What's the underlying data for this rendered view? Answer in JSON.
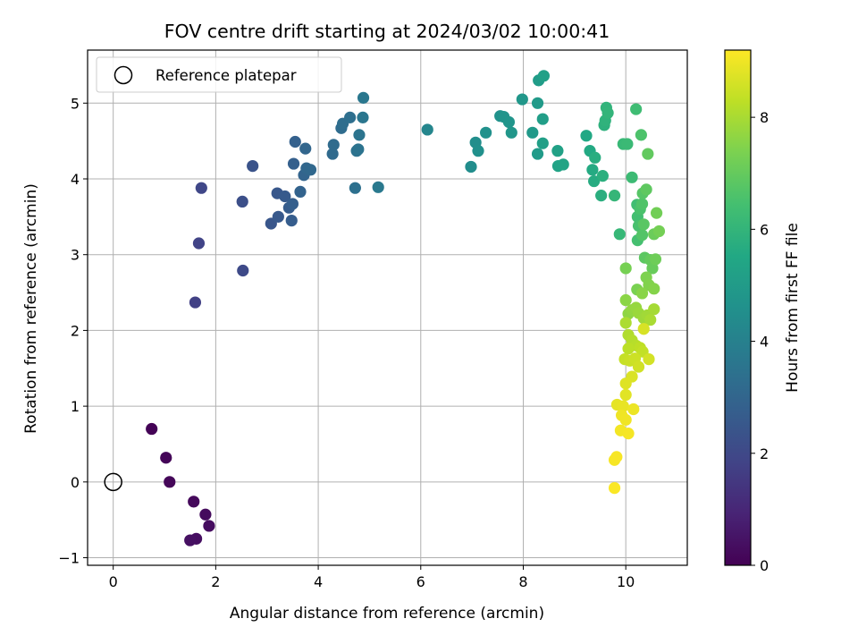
{
  "chart_data": {
    "type": "scatter",
    "title": "FOV centre drift starting at 2024/03/02 10:00:41",
    "xlabel": "Angular distance from reference (arcmin)",
    "ylabel": "Rotation from reference (arcmin)",
    "xlim": [
      -0.5,
      11.2
    ],
    "ylim": [
      -1.1,
      5.7
    ],
    "xticks": [
      0,
      2,
      4,
      6,
      8,
      10
    ],
    "yticks": [
      -1,
      0,
      1,
      2,
      3,
      4,
      5
    ],
    "grid": true,
    "legend": {
      "position": "upper-left",
      "entries": [
        {
          "label": "Reference platepar",
          "marker": "open-circle"
        }
      ]
    },
    "reference_point": {
      "x": 0,
      "y": 0
    },
    "colorbar": {
      "label": "Hours from first FF file",
      "colormap": "viridis",
      "range": [
        0,
        9.2
      ],
      "ticks": [
        0,
        2,
        4,
        6,
        8
      ]
    },
    "points": [
      [
        0.75,
        0.7,
        0.05
      ],
      [
        1.03,
        0.32,
        0.1
      ],
      [
        1.1,
        0.0,
        0.15
      ],
      [
        1.57,
        -0.26,
        0.2
      ],
      [
        1.8,
        -0.43,
        0.25
      ],
      [
        1.87,
        -0.58,
        0.3
      ],
      [
        1.62,
        -0.75,
        0.35
      ],
      [
        1.5,
        -0.77,
        0.4
      ],
      [
        1.6,
        2.37,
        1.75
      ],
      [
        1.67,
        3.15,
        1.85
      ],
      [
        1.72,
        3.88,
        1.95
      ],
      [
        2.53,
        2.79,
        2.05
      ],
      [
        2.52,
        3.7,
        2.2
      ],
      [
        2.72,
        4.17,
        2.35
      ],
      [
        3.08,
        3.41,
        2.45
      ],
      [
        3.2,
        3.81,
        2.5
      ],
      [
        3.22,
        3.5,
        2.55
      ],
      [
        3.35,
        3.77,
        2.6
      ],
      [
        3.43,
        3.62,
        2.65
      ],
      [
        3.48,
        3.45,
        2.7
      ],
      [
        3.5,
        3.67,
        2.75
      ],
      [
        3.52,
        4.2,
        2.8
      ],
      [
        3.55,
        4.49,
        2.85
      ],
      [
        3.65,
        3.83,
        2.9
      ],
      [
        3.72,
        4.05,
        2.95
      ],
      [
        3.75,
        4.4,
        3.0
      ],
      [
        3.77,
        4.14,
        3.05
      ],
      [
        3.85,
        4.12,
        3.1
      ],
      [
        4.28,
        4.33,
        3.15
      ],
      [
        4.3,
        4.45,
        3.2
      ],
      [
        4.45,
        4.67,
        3.25
      ],
      [
        4.48,
        4.73,
        3.3
      ],
      [
        4.62,
        4.81,
        3.35
      ],
      [
        4.72,
        3.88,
        3.4
      ],
      [
        4.75,
        4.37,
        3.45
      ],
      [
        4.78,
        4.39,
        3.5
      ],
      [
        4.8,
        4.58,
        3.55
      ],
      [
        4.87,
        4.81,
        3.6
      ],
      [
        4.88,
        5.07,
        3.65
      ],
      [
        5.17,
        3.89,
        3.7
      ],
      [
        6.13,
        4.65,
        4.2
      ],
      [
        6.98,
        4.16,
        4.45
      ],
      [
        7.07,
        4.48,
        4.5
      ],
      [
        7.12,
        4.37,
        4.55
      ],
      [
        7.27,
        4.61,
        4.6
      ],
      [
        7.55,
        4.83,
        4.65
      ],
      [
        7.62,
        4.82,
        4.7
      ],
      [
        7.72,
        4.75,
        4.75
      ],
      [
        7.77,
        4.61,
        4.8
      ],
      [
        7.98,
        5.05,
        4.85
      ],
      [
        8.18,
        4.61,
        4.9
      ],
      [
        8.28,
        5.0,
        4.95
      ],
      [
        8.28,
        4.33,
        5.0
      ],
      [
        8.3,
        5.3,
        5.05
      ],
      [
        8.38,
        4.79,
        5.1
      ],
      [
        8.38,
        4.47,
        5.15
      ],
      [
        8.4,
        5.36,
        5.2
      ],
      [
        8.67,
        4.37,
        5.25
      ],
      [
        8.68,
        4.17,
        5.3
      ],
      [
        8.78,
        4.19,
        5.35
      ],
      [
        9.23,
        4.57,
        5.5
      ],
      [
        9.3,
        4.37,
        5.55
      ],
      [
        9.35,
        4.12,
        5.6
      ],
      [
        9.38,
        3.97,
        5.65
      ],
      [
        9.4,
        4.28,
        5.7
      ],
      [
        9.52,
        3.78,
        5.75
      ],
      [
        9.55,
        4.04,
        5.8
      ],
      [
        9.58,
        4.71,
        5.85
      ],
      [
        9.6,
        4.77,
        5.9
      ],
      [
        9.62,
        4.94,
        5.95
      ],
      [
        9.65,
        4.87,
        6.0
      ],
      [
        9.78,
        3.78,
        6.05
      ],
      [
        9.88,
        3.27,
        6.1
      ],
      [
        9.95,
        4.46,
        6.15
      ],
      [
        10.03,
        4.46,
        6.2
      ],
      [
        10.12,
        4.02,
        6.25
      ],
      [
        10.2,
        4.92,
        6.3
      ],
      [
        10.22,
        3.66,
        6.35
      ],
      [
        10.23,
        3.5,
        6.4
      ],
      [
        10.23,
        3.19,
        6.45
      ],
      [
        10.25,
        3.38,
        6.5
      ],
      [
        10.28,
        3.6,
        6.55
      ],
      [
        10.3,
        4.58,
        6.6
      ],
      [
        10.32,
        3.67,
        6.65
      ],
      [
        10.32,
        3.26,
        6.7
      ],
      [
        10.33,
        3.81,
        6.75
      ],
      [
        10.35,
        3.4,
        6.8
      ],
      [
        10.37,
        2.96,
        6.85
      ],
      [
        10.4,
        3.86,
        6.9
      ],
      [
        10.43,
        4.33,
        6.95
      ],
      [
        10.48,
        2.93,
        7.0
      ],
      [
        10.52,
        2.82,
        7.05
      ],
      [
        10.55,
        3.27,
        7.1
      ],
      [
        10.58,
        2.94,
        7.15
      ],
      [
        10.6,
        3.55,
        7.2
      ],
      [
        10.65,
        3.31,
        7.25
      ],
      [
        10.0,
        2.82,
        7.3
      ],
      [
        10.22,
        2.54,
        7.35
      ],
      [
        10.4,
        2.7,
        7.4
      ],
      [
        10.45,
        2.6,
        7.45
      ],
      [
        10.55,
        2.55,
        7.5
      ],
      [
        10.32,
        2.49,
        7.55
      ],
      [
        10.0,
        2.4,
        7.6
      ],
      [
        10.05,
        2.22,
        7.65
      ],
      [
        10.12,
        2.27,
        7.7
      ],
      [
        10.2,
        2.3,
        7.75
      ],
      [
        10.25,
        2.23,
        7.8
      ],
      [
        10.35,
        2.16,
        7.85
      ],
      [
        10.42,
        2.2,
        7.9
      ],
      [
        10.55,
        2.28,
        7.95
      ],
      [
        10.48,
        2.14,
        8.0
      ],
      [
        10.0,
        2.1,
        8.05
      ],
      [
        10.05,
        1.94,
        8.1
      ],
      [
        10.12,
        1.87,
        8.15
      ],
      [
        10.2,
        1.8,
        8.2
      ],
      [
        10.05,
        1.76,
        8.25
      ],
      [
        10.28,
        1.77,
        8.3
      ],
      [
        10.33,
        1.72,
        8.35
      ],
      [
        9.98,
        1.62,
        8.4
      ],
      [
        10.08,
        1.6,
        8.45
      ],
      [
        10.18,
        1.63,
        8.5
      ],
      [
        10.25,
        1.52,
        8.55
      ],
      [
        10.45,
        1.62,
        8.6
      ],
      [
        10.35,
        2.02,
        8.65
      ],
      [
        10.12,
        1.39,
        8.7
      ],
      [
        10.0,
        1.3,
        8.75
      ],
      [
        10.0,
        1.15,
        8.8
      ],
      [
        9.83,
        1.02,
        8.85
      ],
      [
        9.95,
        1.0,
        8.9
      ],
      [
        10.15,
        0.96,
        8.95
      ],
      [
        9.92,
        0.88,
        9.0
      ],
      [
        10.0,
        0.82,
        9.02
      ],
      [
        9.9,
        0.68,
        9.05
      ],
      [
        10.05,
        0.64,
        9.08
      ],
      [
        9.78,
        0.29,
        9.1
      ],
      [
        9.82,
        0.33,
        9.12
      ],
      [
        9.78,
        -0.08,
        9.15
      ]
    ]
  }
}
